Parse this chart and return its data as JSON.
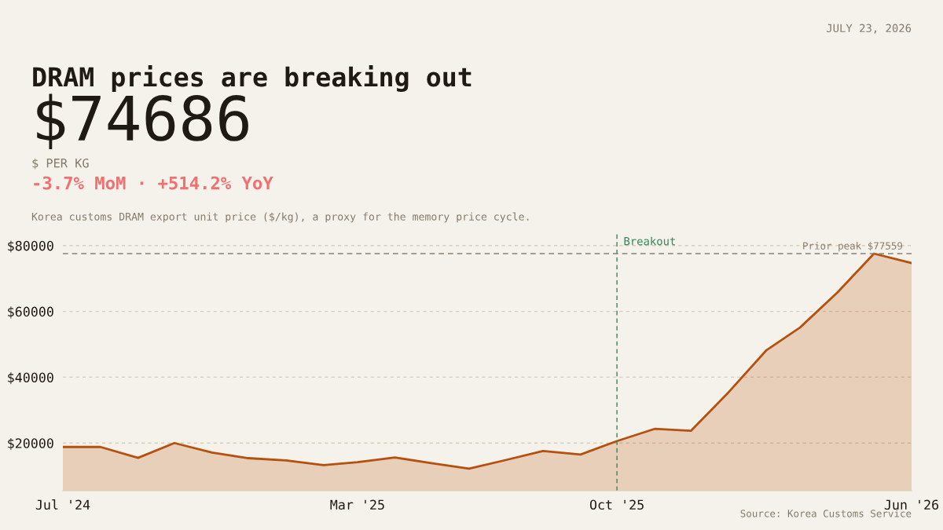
{
  "chart_data": {
    "type": "area",
    "title": "DRAM prices are breaking out",
    "subtitle": "Korea customs DRAM export unit price ($/kg), a proxy for the memory price cycle.",
    "annotations": [
      "JULY 23, 2026",
      "$74686",
      "$ PER KG",
      "-3.7% MoM · +514.2% YoY",
      "Source: Korea Customs Service"
    ],
    "x": [
      "2024-07",
      "2024-08",
      "2024-09",
      "2024-10",
      "2024-11",
      "2024-12",
      "2025-01",
      "2025-02",
      "2025-03",
      "2025-04",
      "2025-05",
      "2025-06",
      "2025-07",
      "2025-08",
      "2025-09",
      "2025-10",
      "2025-11",
      "2025-12",
      "2026-01",
      "2026-02",
      "2026-03",
      "2026-04",
      "2026-05",
      "2026-06"
    ],
    "series": [
      {
        "color": "#b5500f",
        "values": [
          18800,
          18800,
          15500,
          20000,
          17100,
          15400,
          14700,
          13300,
          14200,
          15600,
          13900,
          12200,
          14800,
          17600,
          16500,
          20600,
          24300,
          23700,
          35400,
          48100,
          55100,
          65800,
          77559,
          74686
        ]
      }
    ],
    "xlim": [
      "2024-07",
      "2026-06"
    ],
    "xticks": [
      {
        "value": "2024-07",
        "label": "Jul '24"
      },
      {
        "value": "2025-03",
        "label": "Mar '25"
      },
      {
        "value": "2025-10",
        "label": "Oct '25"
      },
      {
        "value": "2026-06",
        "label": "Jun '26"
      }
    ],
    "ylim": [
      5500,
      84000
    ],
    "yticks": [
      {
        "value": 20000,
        "label": "$20000"
      },
      {
        "value": 40000,
        "label": "$40000"
      },
      {
        "value": 60000,
        "label": "$60000"
      },
      {
        "value": 80000,
        "label": "$80000"
      }
    ],
    "grid": "y",
    "ref_lines": [
      {
        "axis": "x",
        "value": "2025-10",
        "label": "Breakout",
        "color": "#2e8b57",
        "line_style": "dashed"
      },
      {
        "axis": "y",
        "value": 77559,
        "label": "Prior peak $77559",
        "color": "#8a7f70",
        "line_style": "dashed"
      }
    ]
  }
}
